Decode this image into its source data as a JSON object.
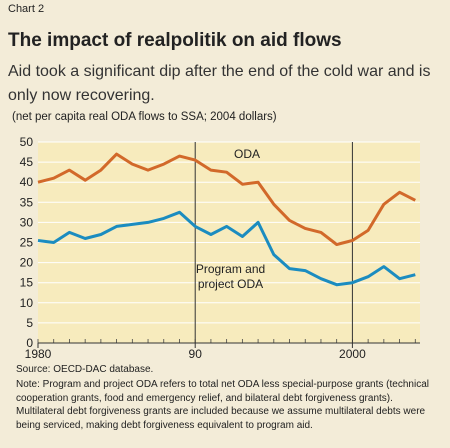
{
  "chart_data": {
    "type": "line",
    "label": "Chart 2",
    "title": "The impact of realpolitik on aid flows",
    "subtitle": "Aid took a significant dip after the end of the cold war and is only now recovering.",
    "units_note": "(net per capita real ODA flows to SSA; 2004 dollars)",
    "source": "Source: OECD-DAC database.",
    "note": "Note: Program and project ODA refers to total net ODA less special-purpose grants (technical cooperation grants, food and emergency relief, and bilateral debt forgiveness grants). Multilateral debt forgiveness grants are included because we assume multilateral debts were being serviced, making debt forgiveness equivalent to program aid.",
    "x": [
      1980,
      1981,
      1982,
      1983,
      1984,
      1985,
      1986,
      1987,
      1988,
      1989,
      1990,
      1991,
      1992,
      1993,
      1994,
      1995,
      1996,
      1997,
      1998,
      1999,
      2000,
      2001,
      2002,
      2003,
      2004
    ],
    "series": [
      {
        "name": "ODA",
        "color": "#d2692a",
        "values": [
          40,
          41,
          43,
          40.5,
          43,
          47,
          44.5,
          43,
          44.5,
          46.5,
          45.5,
          43,
          42.5,
          39.5,
          40,
          34.5,
          30.5,
          28.5,
          27.5,
          24.5,
          25.5,
          28,
          34.5,
          37.5,
          35.5
        ]
      },
      {
        "name": "Program and project ODA",
        "color": "#1b8cc0",
        "values": [
          25.5,
          25,
          27.5,
          26,
          27,
          29,
          29.5,
          30,
          31,
          32.5,
          29,
          27,
          29,
          26.5,
          30,
          22,
          18.5,
          18,
          16,
          14.5,
          15,
          16.5,
          19,
          16,
          17
        ]
      }
    ],
    "xlim": [
      1980,
      2004.3
    ],
    "xticks": [
      1980,
      {
        "value": 1990,
        "label": "90"
      },
      2000
    ],
    "ylim": [
      0,
      50
    ],
    "yticks": [
      0,
      5,
      10,
      15,
      20,
      25,
      30,
      35,
      40,
      45,
      50
    ],
    "grid": true
  }
}
